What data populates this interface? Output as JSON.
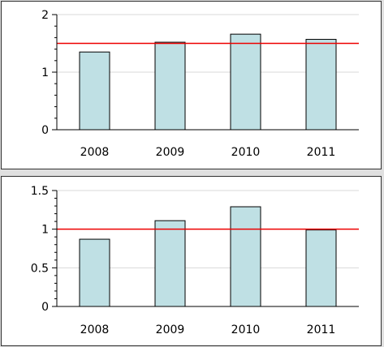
{
  "chart_data": [
    {
      "type": "bar",
      "title": "",
      "xlabel": "",
      "ylabel": "",
      "categories": [
        "2008",
        "2009",
        "2010",
        "2011"
      ],
      "values": [
        1.35,
        1.52,
        1.66,
        1.57
      ],
      "ylim": [
        0,
        2
      ],
      "yticks": [
        "0",
        "1",
        "2"
      ],
      "reference_line": 1.5,
      "grid": "horizontal",
      "colors": {
        "bar_fill": "#bfe0e4",
        "bar_stroke": "#000000",
        "reference_line": "#ee0000",
        "grid": "#d8d8d8"
      }
    },
    {
      "type": "bar",
      "title": "",
      "xlabel": "",
      "ylabel": "",
      "categories": [
        "2008",
        "2009",
        "2010",
        "2011"
      ],
      "values": [
        0.87,
        1.11,
        1.29,
        0.99
      ],
      "ylim": [
        0,
        1.5
      ],
      "yticks": [
        "0",
        "0.5",
        "1",
        "1.5"
      ],
      "reference_line": 1.0,
      "grid": "horizontal",
      "colors": {
        "bar_fill": "#bfe0e4",
        "bar_stroke": "#000000",
        "reference_line": "#ee0000",
        "grid": "#d8d8d8"
      }
    }
  ]
}
